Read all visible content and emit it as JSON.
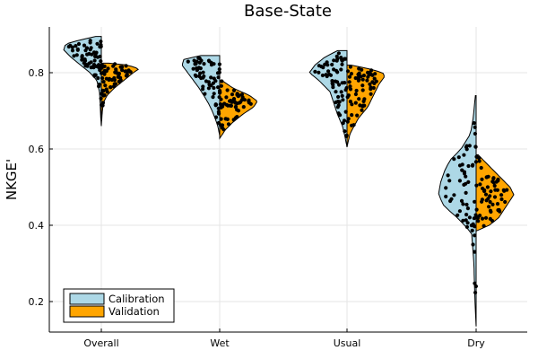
{
  "chart_data": {
    "type": "violin",
    "title": "Base-State",
    "xlabel": "",
    "ylabel": "NKGE'",
    "categories": [
      "Overall",
      "Wet",
      "Usual",
      "Dry"
    ],
    "ylim": [
      0.12,
      0.92
    ],
    "yticks": [
      0.2,
      0.4,
      0.6,
      0.8
    ],
    "grid": true,
    "legend_position": "bottom-left",
    "series": [
      {
        "name": "Calibration",
        "color": "#add8e6",
        "side": "left",
        "data": [
          {
            "category": "Overall",
            "min": 0.66,
            "max": 0.895,
            "profile": [
              [
                0.66,
                0.0
              ],
              [
                0.69,
                0.02
              ],
              [
                0.72,
                0.03
              ],
              [
                0.75,
                0.05
              ],
              [
                0.78,
                0.12
              ],
              [
                0.8,
                0.3
              ],
              [
                0.82,
                0.55
              ],
              [
                0.84,
                0.8
              ],
              [
                0.86,
                1.0
              ],
              [
                0.875,
                0.95
              ],
              [
                0.885,
                0.6
              ],
              [
                0.895,
                0.15
              ]
            ]
          },
          {
            "category": "Wet",
            "min": 0.635,
            "max": 0.845,
            "profile": [
              [
                0.635,
                0.0
              ],
              [
                0.66,
                0.05
              ],
              [
                0.68,
                0.12
              ],
              [
                0.7,
                0.2
              ],
              [
                0.72,
                0.3
              ],
              [
                0.74,
                0.42
              ],
              [
                0.76,
                0.55
              ],
              [
                0.78,
                0.7
              ],
              [
                0.8,
                0.85
              ],
              [
                0.82,
                1.0
              ],
              [
                0.835,
                0.95
              ],
              [
                0.845,
                0.5
              ]
            ]
          },
          {
            "category": "Usual",
            "min": 0.605,
            "max": 0.858,
            "profile": [
              [
                0.605,
                0.0
              ],
              [
                0.63,
                0.05
              ],
              [
                0.66,
                0.12
              ],
              [
                0.69,
                0.25
              ],
              [
                0.72,
                0.35
              ],
              [
                0.75,
                0.45
              ],
              [
                0.78,
                0.75
              ],
              [
                0.8,
                1.0
              ],
              [
                0.82,
                0.85
              ],
              [
                0.84,
                0.6
              ],
              [
                0.858,
                0.25
              ]
            ]
          },
          {
            "category": "Dry",
            "min": 0.135,
            "max": 0.74,
            "profile": [
              [
                0.135,
                0.0
              ],
              [
                0.2,
                0.03
              ],
              [
                0.3,
                0.06
              ],
              [
                0.38,
                0.12
              ],
              [
                0.42,
                0.5
              ],
              [
                0.45,
                0.85
              ],
              [
                0.48,
                1.0
              ],
              [
                0.51,
                0.95
              ],
              [
                0.54,
                0.85
              ],
              [
                0.57,
                0.7
              ],
              [
                0.6,
                0.4
              ],
              [
                0.64,
                0.15
              ],
              [
                0.68,
                0.08
              ],
              [
                0.74,
                0.02
              ]
            ]
          }
        ]
      },
      {
        "name": "Validation",
        "color": "#ffa500",
        "side": "right",
        "data": [
          {
            "category": "Overall",
            "min": 0.66,
            "max": 0.825,
            "profile": [
              [
                0.66,
                0.0
              ],
              [
                0.69,
                0.02
              ],
              [
                0.72,
                0.05
              ],
              [
                0.74,
                0.15
              ],
              [
                0.76,
                0.35
              ],
              [
                0.78,
                0.6
              ],
              [
                0.8,
                0.85
              ],
              [
                0.81,
                1.0
              ],
              [
                0.82,
                0.7
              ],
              [
                0.825,
                0.2
              ]
            ]
          },
          {
            "category": "Wet",
            "min": 0.628,
            "max": 0.78,
            "profile": [
              [
                0.628,
                0.0
              ],
              [
                0.65,
                0.15
              ],
              [
                0.67,
                0.35
              ],
              [
                0.69,
                0.6
              ],
              [
                0.71,
                0.9
              ],
              [
                0.725,
                1.0
              ],
              [
                0.74,
                0.8
              ],
              [
                0.76,
                0.35
              ],
              [
                0.78,
                0.05
              ]
            ]
          },
          {
            "category": "Usual",
            "min": 0.605,
            "max": 0.82,
            "profile": [
              [
                0.605,
                0.0
              ],
              [
                0.64,
                0.08
              ],
              [
                0.68,
                0.3
              ],
              [
                0.71,
                0.55
              ],
              [
                0.74,
                0.7
              ],
              [
                0.77,
                0.85
              ],
              [
                0.79,
                1.0
              ],
              [
                0.8,
                0.95
              ],
              [
                0.81,
                0.6
              ],
              [
                0.82,
                0.1
              ]
            ]
          },
          {
            "category": "Dry",
            "min": 0.385,
            "max": 0.585,
            "profile": [
              [
                0.385,
                0.0
              ],
              [
                0.4,
                0.35
              ],
              [
                0.42,
                0.6
              ],
              [
                0.45,
                0.8
              ],
              [
                0.48,
                1.0
              ],
              [
                0.5,
                0.9
              ],
              [
                0.52,
                0.7
              ],
              [
                0.55,
                0.4
              ],
              [
                0.57,
                0.2
              ],
              [
                0.585,
                0.05
              ]
            ]
          }
        ]
      }
    ],
    "points_per_half": 60
  }
}
